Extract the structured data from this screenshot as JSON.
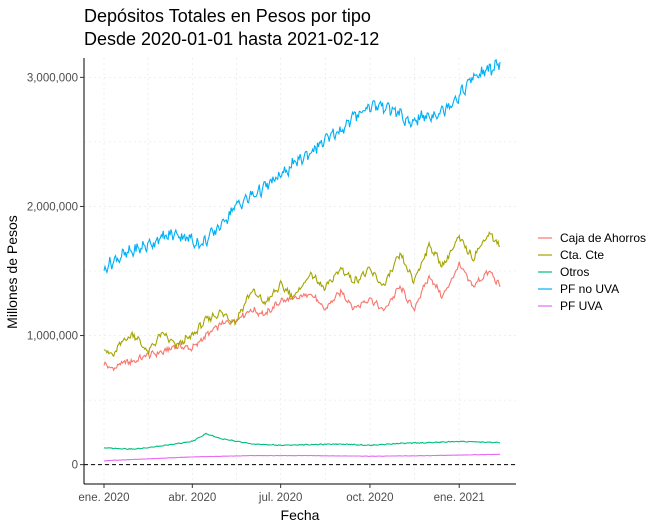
{
  "chart_data": {
    "type": "line",
    "title": "Depósitos Totales en Pesos por tipo",
    "subtitle": "Desde 2020-01-01 hasta 2021-02-12",
    "xlabel": "Fecha",
    "ylabel": "Millones de Pesos",
    "x_range": [
      "2020-01-01",
      "2021-02-12"
    ],
    "x_ticks": [
      {
        "date": "2020-01-01",
        "label": "ene. 2020"
      },
      {
        "date": "2020-04-01",
        "label": "abr. 2020"
      },
      {
        "date": "2020-07-01",
        "label": "jul. 2020"
      },
      {
        "date": "2020-10-01",
        "label": "oct. 2020"
      },
      {
        "date": "2021-01-01",
        "label": "ene. 2021"
      }
    ],
    "ylim": [
      -150000,
      3150000
    ],
    "y_ticks": [
      {
        "value": 0,
        "label": "0"
      },
      {
        "value": 1000000,
        "label": "1,000,000"
      },
      {
        "value": 2000000,
        "label": "2,000,000"
      },
      {
        "value": 3000000,
        "label": "3,000,000"
      }
    ],
    "reference_line": {
      "value": 0,
      "style": "dashed"
    },
    "grid": true,
    "legend_position": "right",
    "series": [
      {
        "name": "Caja de Ahorros",
        "color": "#F8766D",
        "points": [
          [
            "2020-01-01",
            780000
          ],
          [
            "2020-01-10",
            740000
          ],
          [
            "2020-01-20",
            790000
          ],
          [
            "2020-02-01",
            800000
          ],
          [
            "2020-02-15",
            850000
          ],
          [
            "2020-03-01",
            870000
          ],
          [
            "2020-03-15",
            920000
          ],
          [
            "2020-04-01",
            900000
          ],
          [
            "2020-04-15",
            1000000
          ],
          [
            "2020-05-01",
            1090000
          ],
          [
            "2020-05-15",
            1120000
          ],
          [
            "2020-06-01",
            1200000
          ],
          [
            "2020-06-15",
            1160000
          ],
          [
            "2020-07-01",
            1270000
          ],
          [
            "2020-07-15",
            1280000
          ],
          [
            "2020-08-01",
            1330000
          ],
          [
            "2020-08-15",
            1200000
          ],
          [
            "2020-09-01",
            1340000
          ],
          [
            "2020-09-15",
            1210000
          ],
          [
            "2020-10-01",
            1290000
          ],
          [
            "2020-10-15",
            1190000
          ],
          [
            "2020-11-01",
            1380000
          ],
          [
            "2020-11-15",
            1200000
          ],
          [
            "2020-12-01",
            1460000
          ],
          [
            "2020-12-15",
            1300000
          ],
          [
            "2021-01-01",
            1550000
          ],
          [
            "2021-01-15",
            1380000
          ],
          [
            "2021-02-01",
            1500000
          ],
          [
            "2021-02-12",
            1380000
          ]
        ]
      },
      {
        "name": "Cta. Cte",
        "color": "#A3A500",
        "points": [
          [
            "2020-01-01",
            900000
          ],
          [
            "2020-01-10",
            840000
          ],
          [
            "2020-01-20",
            960000
          ],
          [
            "2020-02-01",
            1010000
          ],
          [
            "2020-02-15",
            870000
          ],
          [
            "2020-03-01",
            1020000
          ],
          [
            "2020-03-15",
            920000
          ],
          [
            "2020-04-01",
            1000000
          ],
          [
            "2020-04-15",
            1120000
          ],
          [
            "2020-05-01",
            1180000
          ],
          [
            "2020-05-15",
            1100000
          ],
          [
            "2020-06-01",
            1350000
          ],
          [
            "2020-06-15",
            1250000
          ],
          [
            "2020-07-01",
            1390000
          ],
          [
            "2020-07-15",
            1300000
          ],
          [
            "2020-08-01",
            1480000
          ],
          [
            "2020-08-15",
            1360000
          ],
          [
            "2020-09-01",
            1520000
          ],
          [
            "2020-09-15",
            1420000
          ],
          [
            "2020-10-01",
            1510000
          ],
          [
            "2020-10-15",
            1380000
          ],
          [
            "2020-11-01",
            1630000
          ],
          [
            "2020-11-15",
            1420000
          ],
          [
            "2020-12-01",
            1700000
          ],
          [
            "2020-12-15",
            1540000
          ],
          [
            "2021-01-01",
            1760000
          ],
          [
            "2021-01-15",
            1600000
          ],
          [
            "2021-02-01",
            1800000
          ],
          [
            "2021-02-12",
            1680000
          ]
        ]
      },
      {
        "name": "Otros",
        "color": "#00BF7D",
        "points": [
          [
            "2020-01-01",
            130000
          ],
          [
            "2020-02-01",
            120000
          ],
          [
            "2020-03-01",
            145000
          ],
          [
            "2020-04-01",
            180000
          ],
          [
            "2020-04-15",
            240000
          ],
          [
            "2020-05-01",
            200000
          ],
          [
            "2020-06-01",
            160000
          ],
          [
            "2020-07-01",
            150000
          ],
          [
            "2020-08-01",
            155000
          ],
          [
            "2020-09-01",
            160000
          ],
          [
            "2020-10-01",
            150000
          ],
          [
            "2020-11-01",
            165000
          ],
          [
            "2020-12-01",
            170000
          ],
          [
            "2021-01-01",
            180000
          ],
          [
            "2021-02-12",
            170000
          ]
        ]
      },
      {
        "name": "PF no UVA",
        "color": "#00B0F6",
        "points": [
          [
            "2020-01-01",
            1520000
          ],
          [
            "2020-01-15",
            1600000
          ],
          [
            "2020-02-01",
            1660000
          ],
          [
            "2020-02-15",
            1700000
          ],
          [
            "2020-03-01",
            1760000
          ],
          [
            "2020-03-15",
            1790000
          ],
          [
            "2020-04-01",
            1740000
          ],
          [
            "2020-04-10",
            1700000
          ],
          [
            "2020-05-01",
            1860000
          ],
          [
            "2020-05-15",
            2000000
          ],
          [
            "2020-06-01",
            2080000
          ],
          [
            "2020-06-15",
            2150000
          ],
          [
            "2020-07-01",
            2240000
          ],
          [
            "2020-07-15",
            2330000
          ],
          [
            "2020-08-01",
            2420000
          ],
          [
            "2020-08-15",
            2510000
          ],
          [
            "2020-09-01",
            2590000
          ],
          [
            "2020-09-15",
            2700000
          ],
          [
            "2020-10-01",
            2780000
          ],
          [
            "2020-10-15",
            2780000
          ],
          [
            "2020-11-01",
            2720000
          ],
          [
            "2020-11-10",
            2630000
          ],
          [
            "2020-11-20",
            2690000
          ],
          [
            "2020-12-01",
            2700000
          ],
          [
            "2020-12-15",
            2740000
          ],
          [
            "2021-01-01",
            2860000
          ],
          [
            "2021-01-15",
            3000000
          ],
          [
            "2021-02-01",
            3060000
          ],
          [
            "2021-02-12",
            3110000
          ]
        ]
      },
      {
        "name": "PF UVA",
        "color": "#E76BF3",
        "points": [
          [
            "2020-01-01",
            30000
          ],
          [
            "2020-02-01",
            40000
          ],
          [
            "2020-04-01",
            60000
          ],
          [
            "2020-06-01",
            70000
          ],
          [
            "2020-08-01",
            70000
          ],
          [
            "2020-10-01",
            65000
          ],
          [
            "2020-12-01",
            70000
          ],
          [
            "2021-02-12",
            80000
          ]
        ]
      }
    ]
  }
}
